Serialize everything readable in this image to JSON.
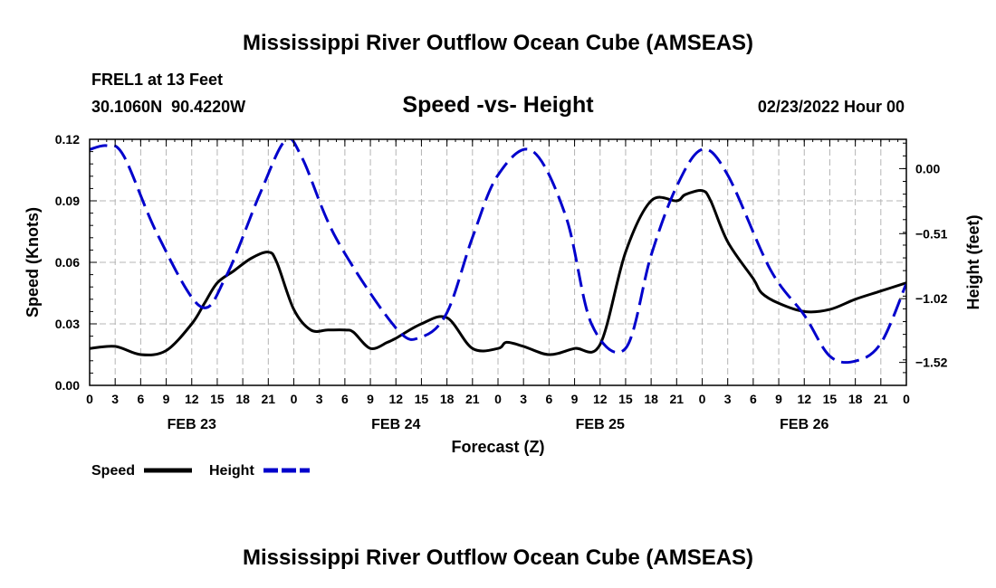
{
  "colors": {
    "speed": "#000000",
    "height": "#0000cc",
    "grid": "#b4b4b4",
    "text": "#000000"
  },
  "chart_data": {
    "type": "line",
    "title": "Mississippi River Outflow Ocean Cube (AMSEAS)",
    "footer_title": "Mississippi River Outflow Ocean Cube (AMSEAS)",
    "subtitle": "Speed -vs- Height",
    "station": "FREL1 at 13 Feet",
    "location": "30.1060N  90.4220W",
    "date": "02/23/2022 Hour 00",
    "xlabel": "Forecast (Z)",
    "ylabel_left": "Speed (Knots)",
    "ylabel_right": "Height (feet)",
    "xlim": [
      0,
      96
    ],
    "ylim_left": [
      0,
      0.12
    ],
    "ylim_right": [
      -1.7,
      0.23
    ],
    "left_ticks": [
      0.0,
      0.03,
      0.06,
      0.09,
      0.12
    ],
    "left_tick_labels": [
      "0.00",
      "0.03",
      "0.06",
      "0.09",
      "0.12"
    ],
    "right_ticks": [
      0.0,
      -0.51,
      -1.02,
      -1.52
    ],
    "right_tick_labels": [
      "0.00",
      "−0.51",
      "−1.02",
      "−1.52"
    ],
    "x_tick_labels": [
      "0",
      "3",
      "6",
      "9",
      "12",
      "15",
      "18",
      "21",
      "0",
      "3",
      "6",
      "9",
      "12",
      "15",
      "18",
      "21",
      "0",
      "3",
      "6",
      "9",
      "12",
      "15",
      "18",
      "21",
      "0",
      "3",
      "6",
      "9",
      "12",
      "15",
      "18",
      "21",
      "0"
    ],
    "day_labels": [
      {
        "label": "FEB 23",
        "hour": 12
      },
      {
        "label": "FEB 24",
        "hour": 36
      },
      {
        "label": "FEB 25",
        "hour": 60
      },
      {
        "label": "FEB 26",
        "hour": 84
      }
    ],
    "grid": true,
    "legend_position": "bottom-left",
    "series": [
      {
        "name": "Speed",
        "axis": "left",
        "style": "solid",
        "x": [
          0,
          3,
          6,
          9,
          12,
          13.5,
          15,
          17,
          19,
          21,
          22,
          24,
          26,
          28,
          30,
          31,
          33,
          35,
          36,
          39,
          42,
          45,
          48,
          49,
          51,
          54,
          57,
          60,
          63,
          66,
          69,
          70,
          72,
          73,
          75,
          78,
          79,
          81,
          84,
          87,
          90,
          93,
          96
        ],
        "values": [
          0.018,
          0.019,
          0.015,
          0.017,
          0.03,
          0.04,
          0.05,
          0.056,
          0.062,
          0.065,
          0.06,
          0.037,
          0.027,
          0.027,
          0.027,
          0.026,
          0.018,
          0.021,
          0.023,
          0.03,
          0.033,
          0.018,
          0.018,
          0.021,
          0.019,
          0.015,
          0.018,
          0.02,
          0.065,
          0.09,
          0.09,
          0.093,
          0.095,
          0.09,
          0.07,
          0.052,
          0.045,
          0.04,
          0.036,
          0.037,
          0.042,
          0.046,
          0.05
        ]
      },
      {
        "name": "Height",
        "axis": "right",
        "style": "dashed",
        "x": [
          0,
          2,
          4,
          8,
          13,
          16,
          20,
          23,
          25,
          29,
          36,
          39,
          42,
          45,
          48,
          52,
          56,
          59,
          63,
          66,
          69,
          72,
          75,
          80,
          84,
          87,
          90,
          93,
          96
        ],
        "values": [
          0.15,
          0.18,
          0.1,
          -0.52,
          -1.08,
          -0.85,
          -0.2,
          0.22,
          0.08,
          -0.55,
          -1.25,
          -1.32,
          -1.13,
          -0.54,
          -0.05,
          0.14,
          -0.38,
          -1.22,
          -1.41,
          -0.68,
          -0.14,
          0.15,
          -0.05,
          -0.79,
          -1.15,
          -1.47,
          -1.51,
          -1.37,
          -0.9
        ]
      }
    ]
  }
}
